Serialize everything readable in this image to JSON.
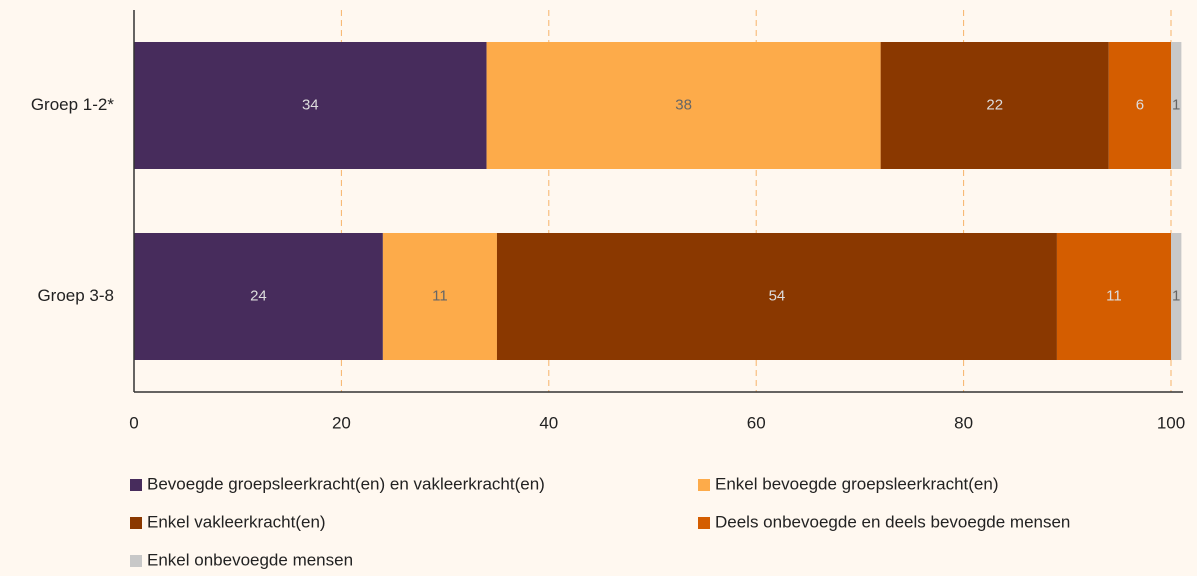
{
  "chart_data": {
    "type": "stacked-bar-horizontal",
    "categories": [
      "Groep 1-2*",
      "Groep 3-8"
    ],
    "series": [
      {
        "name": "Bevoegde groepsleerkracht(en) en vakleerkracht(en)",
        "color": "#472c5c",
        "values": [
          34,
          24
        ]
      },
      {
        "name": "Enkel bevoegde groepsleerkracht(en)",
        "color": "#fdab4a",
        "values": [
          38,
          11
        ]
      },
      {
        "name": "Enkel vakleerkracht(en)",
        "color": "#8a3800",
        "values": [
          22,
          54
        ]
      },
      {
        "name": "Deels onbevoegde en deels bevoegde mensen",
        "color": "#d45d00",
        "values": [
          6,
          11
        ]
      },
      {
        "name": "Enkel onbevoegde mensen",
        "color": "#c8c8c8",
        "values": [
          1,
          1
        ]
      }
    ],
    "xlim": [
      0,
      100
    ],
    "xticks": [
      0,
      20,
      40,
      60,
      80,
      100
    ],
    "grid": true,
    "legend": "bottom"
  }
}
